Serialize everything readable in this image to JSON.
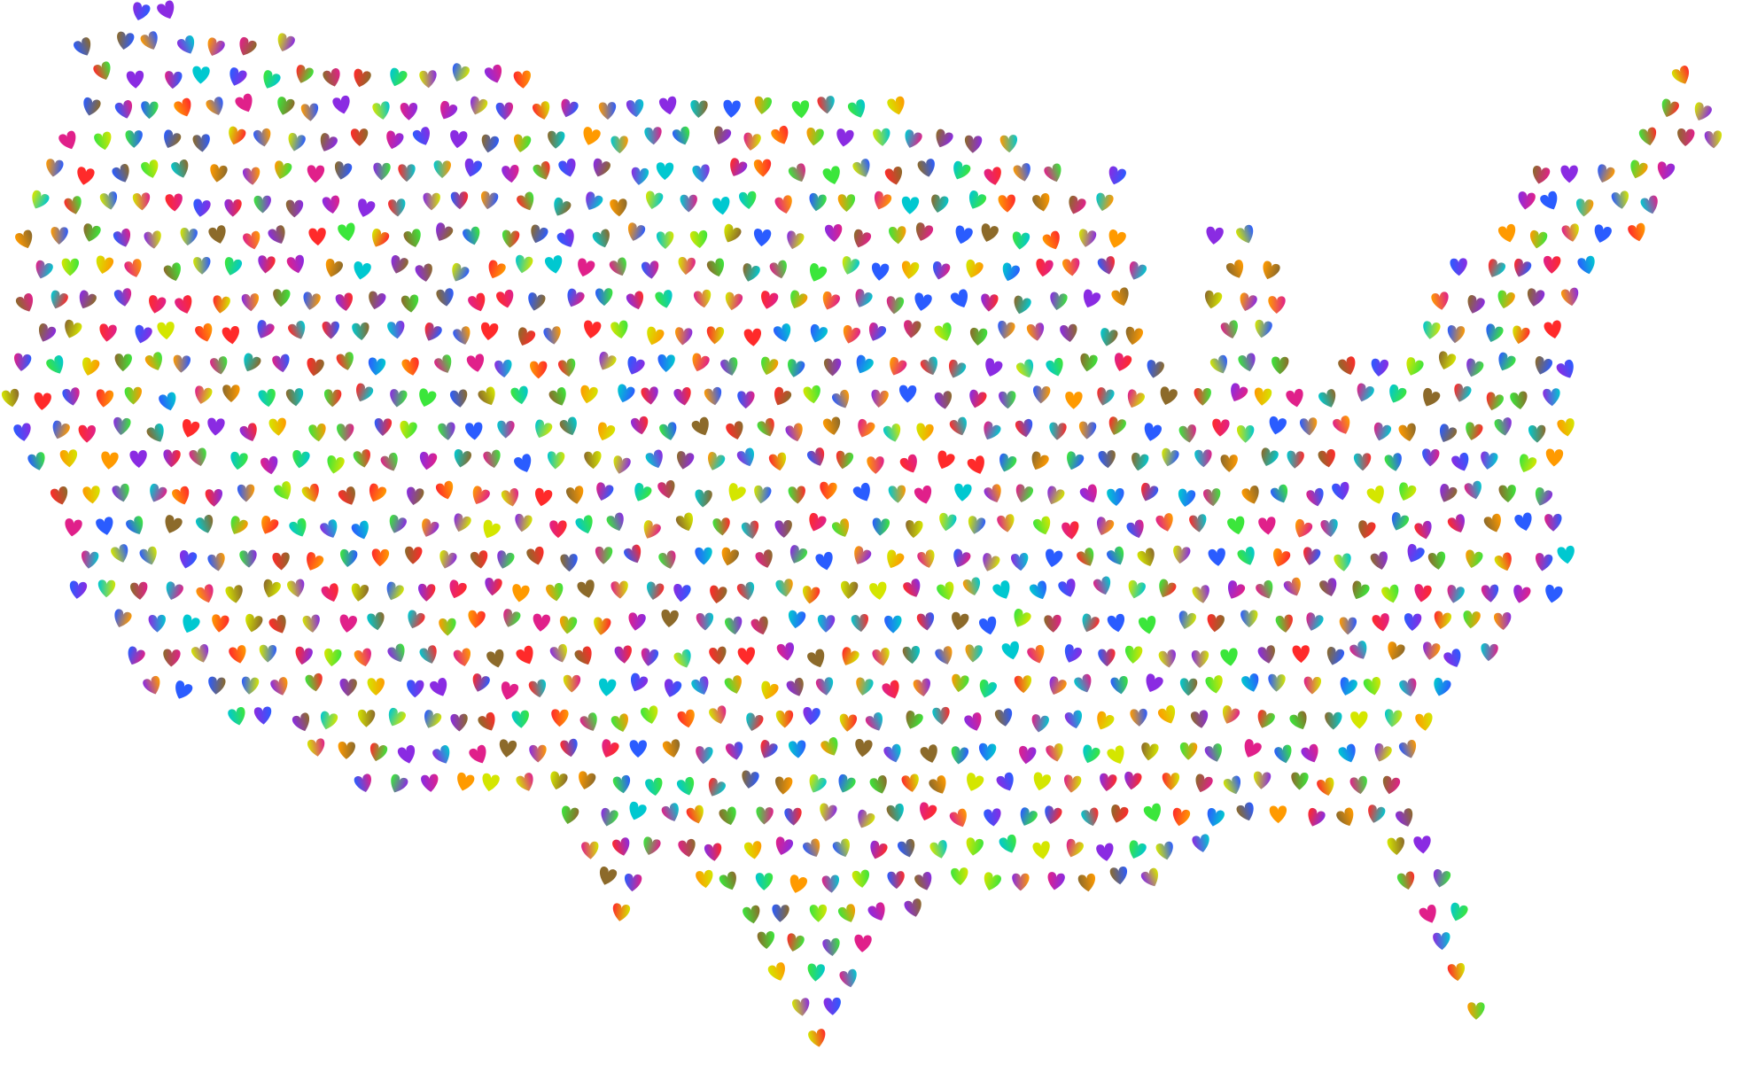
{
  "style": {
    "background": "#ffffff",
    "mark": "heart-icon",
    "gradient_hues": [
      "#ff2a2a",
      "#ff9a00",
      "#d4e600",
      "#3be63b",
      "#00c8d0",
      "#2a5cff",
      "#8a2be2",
      "#e0208a",
      "#8c6a2a"
    ]
  }
}
